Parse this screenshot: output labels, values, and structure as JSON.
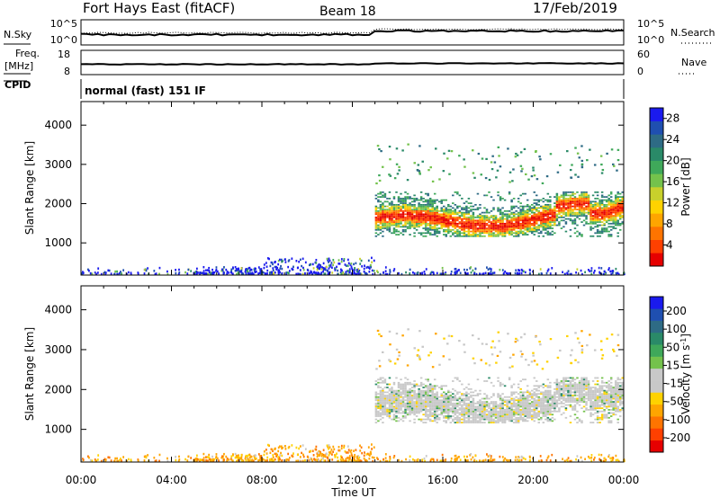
{
  "header": {
    "site": "Fort Hays East (fitACF)",
    "beam": "Beam 18",
    "date": "17/Feb/2019"
  },
  "top_panels": {
    "nsky_label": "N.Sky",
    "nsky_ticks": [
      "10^5",
      "10^0"
    ],
    "nsearch_label": "N.Search",
    "nsearch_ticks": [
      "10^5",
      "10^0"
    ],
    "freq_label_1": "Freq.",
    "freq_label_2": "[MHz]",
    "freq_ticks": [
      "18",
      "8"
    ],
    "nave_label": "Nave",
    "nave_ticks": [
      "60",
      "0"
    ],
    "cpid_label": "CPID",
    "cpid_text": "normal (fast) 151 IF"
  },
  "colors": {
    "power": [
      "#1a1aee",
      "#1f4fb0",
      "#2e6b85",
      "#2a8a68",
      "#3fa85a",
      "#74c24c",
      "#c8d02c",
      "#ffd200",
      "#ffa500",
      "#ff7400",
      "#ff4000",
      "#e60000"
    ],
    "velocity": [
      "#1a1aee",
      "#1f4fb0",
      "#2e6b85",
      "#2a8a68",
      "#3fa85a",
      "#74c24c",
      "#c8c8c8",
      "#c8c8c8",
      "#ffd200",
      "#ffa500",
      "#ff7400",
      "#ff4000",
      "#e60000"
    ]
  },
  "chart_data": [
    {
      "type": "heatmap",
      "title": "Power",
      "xlabel": "",
      "ylabel": "Slant Range [km]",
      "x_tick_labels": [
        "00:00",
        "04:00",
        "08:00",
        "12:00",
        "16:00",
        "20:00",
        "00:00"
      ],
      "xlim_hours": [
        0,
        24
      ],
      "ylim_km": [
        180,
        4600
      ],
      "y_tick_labels": [
        "1000",
        "2000",
        "3000",
        "4000"
      ],
      "colorbar": {
        "label": "Power [dB]",
        "ticks": [
          "4",
          "8",
          "12",
          "16",
          "20",
          "24",
          "28"
        ],
        "range": [
          0,
          30
        ]
      },
      "features": [
        {
          "start_hour": 13.0,
          "end_hour": 24.0,
          "center_range_km": 1500,
          "description": "main E/F-region echo band"
        },
        {
          "start_hour": 0.0,
          "end_hour": 13.0,
          "center_range_km": 250,
          "description": "near-range ground/meteor scatter"
        }
      ]
    },
    {
      "type": "heatmap",
      "title": "Velocity",
      "xlabel": "Time UT",
      "ylabel": "Slant Range [km]",
      "x_tick_labels": [
        "00:00",
        "04:00",
        "08:00",
        "12:00",
        "16:00",
        "20:00",
        "00:00"
      ],
      "xlim_hours": [
        0,
        24
      ],
      "ylim_km": [
        180,
        4600
      ],
      "y_tick_labels": [
        "1000",
        "2000",
        "3000",
        "4000"
      ],
      "colorbar": {
        "label": "Velocity [m s^-1]",
        "ticks": [
          "200",
          "100",
          "50",
          "15",
          "-15",
          "-50",
          "-100",
          "-200"
        ],
        "range": [
          -250,
          250
        ]
      }
    }
  ]
}
